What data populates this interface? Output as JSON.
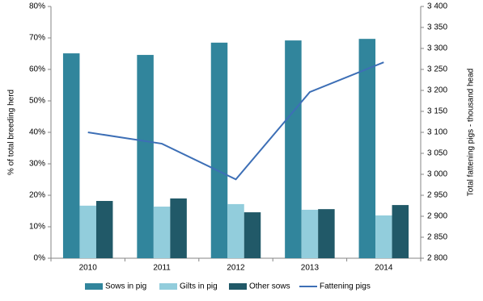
{
  "chart_data": {
    "type": "bar",
    "categories": [
      "2010",
      "2011",
      "2012",
      "2013",
      "2014"
    ],
    "y_label": "% of total breeding herd",
    "y2_label": "Total fattening pigs - thousand head",
    "series": [
      {
        "name": "Sows in pig",
        "type": "bar",
        "color": "#31859c",
        "values": [
          65.1,
          64.6,
          68.5,
          69.2,
          69.7
        ]
      },
      {
        "name": "Gilts in pig",
        "type": "bar",
        "color": "#92cddc",
        "values": [
          16.7,
          16.4,
          17.2,
          15.4,
          13.6
        ]
      },
      {
        "name": "Other sows",
        "type": "bar",
        "color": "#215968",
        "values": [
          18.2,
          19.0,
          14.6,
          15.6,
          16.9
        ]
      },
      {
        "name": "Fattening pigs",
        "type": "line",
        "axis": "y2",
        "color": "#3d6fb6",
        "values": [
          3100,
          3073,
          2988,
          3196,
          3267
        ]
      }
    ],
    "ylim": [
      0,
      80
    ],
    "yticks": [
      {
        "value": 0,
        "label": "0%"
      },
      {
        "value": 10,
        "label": "10%"
      },
      {
        "value": 20,
        "label": "20%"
      },
      {
        "value": 30,
        "label": "30%"
      },
      {
        "value": 40,
        "label": "40%"
      },
      {
        "value": 50,
        "label": "50%"
      },
      {
        "value": 60,
        "label": "60%"
      },
      {
        "value": 70,
        "label": "70%"
      },
      {
        "value": 80,
        "label": "80%"
      }
    ],
    "y2lim": [
      2800,
      3400
    ],
    "y2ticks": [
      {
        "value": 2800,
        "label": "2 800"
      },
      {
        "value": 2850,
        "label": "2 850"
      },
      {
        "value": 2900,
        "label": "2 900"
      },
      {
        "value": 2950,
        "label": "2 950"
      },
      {
        "value": 3000,
        "label": "3 000"
      },
      {
        "value": 3050,
        "label": "3 050"
      },
      {
        "value": 3100,
        "label": "3 100"
      },
      {
        "value": 3150,
        "label": "3 150"
      },
      {
        "value": 3200,
        "label": "3 200"
      },
      {
        "value": 3250,
        "label": "3 250"
      },
      {
        "value": 3300,
        "label": "3 300"
      },
      {
        "value": 3350,
        "label": "3 350"
      },
      {
        "value": 3400,
        "label": "3 400"
      }
    ],
    "grid": false
  }
}
